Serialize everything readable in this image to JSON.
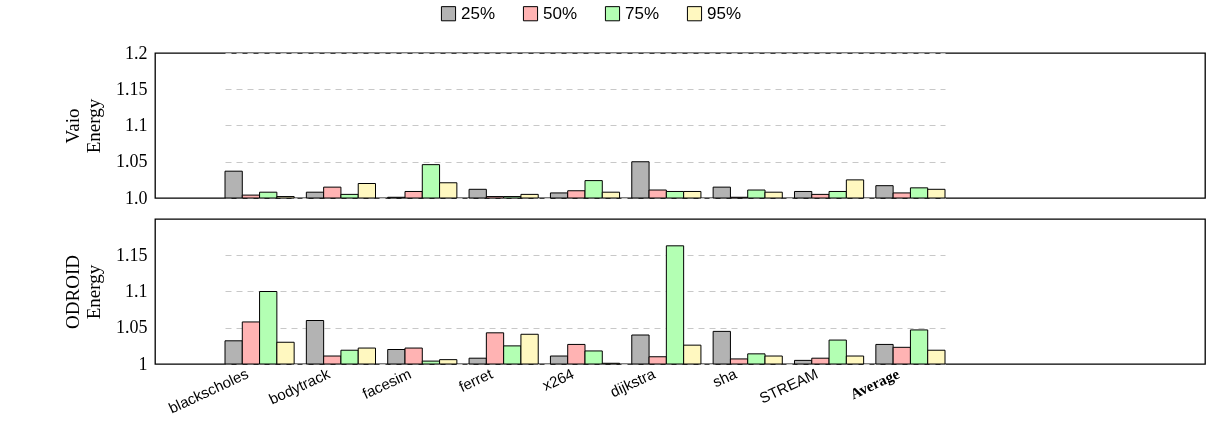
{
  "chart_data": [
    {
      "type": "bar",
      "ylabel": "Vaio Energy",
      "categories": [
        "blackscholes",
        "bodytrack",
        "facesim",
        "ferret",
        "x264",
        "dijkstra",
        "sha",
        "STREAM",
        "Average"
      ],
      "series": [
        {
          "name": "25%",
          "color": "#b3b3b3",
          "values": [
            1.037,
            1.008,
            1.001,
            1.012,
            1.007,
            1.05,
            1.015,
            1.009,
            1.017
          ]
        },
        {
          "name": "50%",
          "color": "#ffb3b3",
          "values": [
            1.004,
            1.015,
            1.009,
            1.002,
            1.01,
            1.011,
            1.001,
            1.005,
            1.007
          ]
        },
        {
          "name": "75%",
          "color": "#b3ffb3",
          "values": [
            1.008,
            1.005,
            1.046,
            1.002,
            1.024,
            1.009,
            1.011,
            1.009,
            1.014
          ]
        },
        {
          "name": "95%",
          "color": "#fff8c0",
          "values": [
            1.002,
            1.02,
            1.021,
            1.005,
            1.008,
            1.009,
            1.008,
            1.025,
            1.012
          ]
        }
      ],
      "ylim": [
        1.0,
        1.2
      ],
      "yticks": [
        {
          "value": 1.0,
          "label": "1.0"
        },
        1.05,
        1.1,
        1.15,
        1.2
      ],
      "grid": "y",
      "legend": "top",
      "tick_labels": "y"
    },
    {
      "type": "bar",
      "ylabel": "ODROID Energy",
      "categories": [
        "blackscholes",
        "bodytrack",
        "facesim",
        "ferret",
        "x264",
        "dijkstra",
        "sha",
        "STREAM",
        "Average"
      ],
      "series": [
        {
          "name": "25%",
          "color": "#b3b3b3",
          "values": [
            1.032,
            1.06,
            1.02,
            1.008,
            1.011,
            1.04,
            1.045,
            1.005,
            1.027
          ]
        },
        {
          "name": "50%",
          "color": "#ffb3b3",
          "values": [
            1.058,
            1.011,
            1.022,
            1.043,
            1.027,
            1.01,
            1.007,
            1.008,
            1.023
          ]
        },
        {
          "name": "75%",
          "color": "#b3ffb3",
          "values": [
            1.1,
            1.019,
            1.004,
            1.025,
            1.018,
            1.163,
            1.014,
            1.033,
            1.047
          ]
        },
        {
          "name": "95%",
          "color": "#fff8c0",
          "values": [
            1.03,
            1.022,
            1.006,
            1.041,
            1.001,
            1.026,
            1.011,
            1.011,
            1.019
          ]
        }
      ],
      "ylim": [
        1,
        1.2
      ],
      "yticks": [
        1,
        1.05,
        1.1,
        1.15
      ],
      "grid": "y",
      "legend": false
    }
  ]
}
